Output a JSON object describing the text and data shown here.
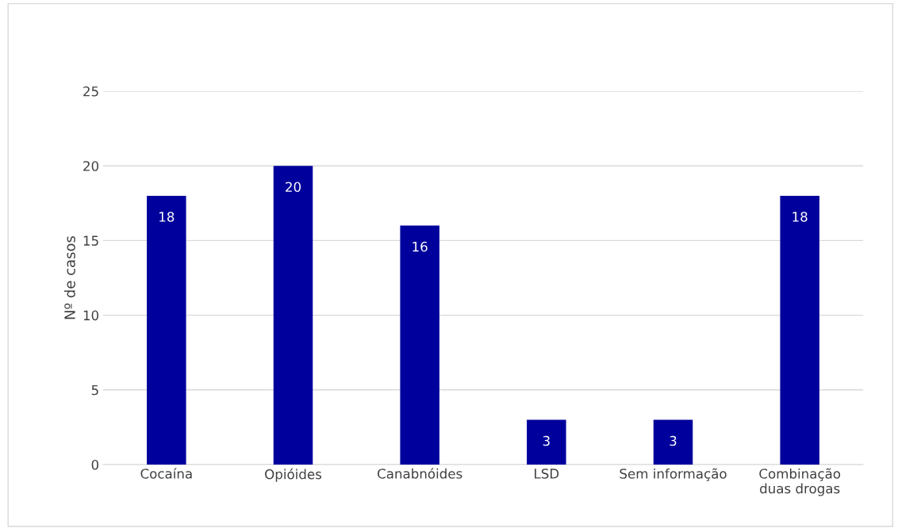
{
  "chart_data": {
    "type": "bar",
    "ylabel": "Nº de casos",
    "categories": [
      "Cocaína",
      "Opióides",
      "Canabnóides",
      "LSD",
      "Sem informação",
      "Combinação\nduas drogas"
    ],
    "values": [
      18,
      20,
      16,
      3,
      3,
      18
    ],
    "color": "#00009c",
    "ylim": [
      0,
      25
    ],
    "yticks": [
      0,
      5,
      10,
      15,
      20,
      25
    ],
    "grid": "y",
    "data_labels": true
  }
}
